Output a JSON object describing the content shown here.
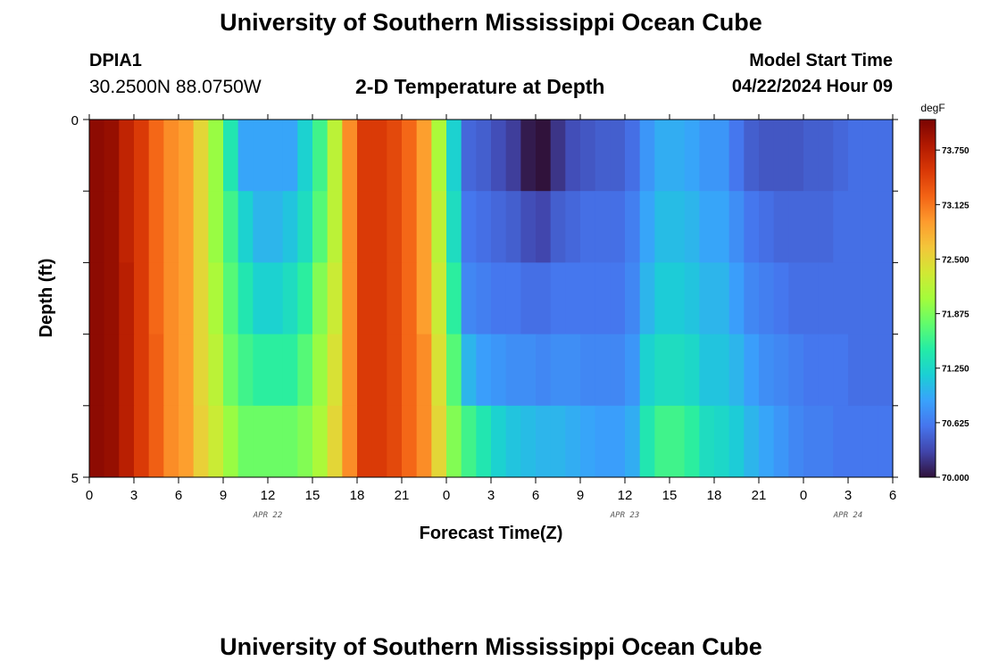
{
  "header": {
    "title": "University of Southern Mississippi Ocean Cube",
    "station_id": "DPIA1",
    "coords": "30.2500N  88.0750W",
    "subtitle": "2-D Temperature at Depth",
    "model_start_label": "Model Start Time",
    "model_start_value": "04/22/2024 Hour 09"
  },
  "footer": {
    "title": "University of Southern Mississippi Ocean Cube"
  },
  "chart_data": {
    "type": "heatmap",
    "title": "2-D Temperature at Depth",
    "xlabel": "Forecast Time(Z)",
    "ylabel": "Depth (ft)",
    "x_tick_labels": [
      "0",
      "3",
      "6",
      "9",
      "12",
      "15",
      "18",
      "21",
      "0",
      "3",
      "6",
      "9",
      "12",
      "15",
      "18",
      "21",
      "0",
      "3",
      "6"
    ],
    "x_date_labels": [
      "APR 22",
      "APR 23",
      "APR 24"
    ],
    "y_tick_labels": [
      "0",
      "5"
    ],
    "x_range_hours": [
      0,
      54
    ],
    "y_range_ft": [
      0,
      5
    ],
    "depth_levels_ft": [
      0,
      1,
      2,
      3,
      4,
      5
    ],
    "colorbar": {
      "unit": "degF",
      "range": [
        70.0,
        74.1
      ],
      "ticks": [
        "70.000",
        "70.625",
        "71.250",
        "71.875",
        "72.500",
        "73.125",
        "73.750"
      ],
      "colors": [
        "#30123b",
        "#4145ab",
        "#4675ed",
        "#39a2fc",
        "#1bcfd4",
        "#24eca6",
        "#61fc6c",
        "#a4fc3b",
        "#d1e834",
        "#f3c63a",
        "#fe9b2d",
        "#f36315",
        "#d93806",
        "#b11901",
        "#7a0402"
      ]
    },
    "series_hours": [
      0,
      1,
      2,
      3,
      4,
      5,
      6,
      7,
      8,
      9,
      10,
      11,
      12,
      13,
      14,
      15,
      16,
      17,
      18,
      19,
      20,
      21,
      22,
      23,
      24,
      25,
      26,
      27,
      28,
      29,
      30,
      31,
      32,
      33,
      34,
      35,
      36,
      37,
      38,
      39,
      40,
      41,
      42,
      43,
      44,
      45,
      46,
      47,
      48,
      49,
      50,
      51,
      52,
      53,
      54
    ],
    "temperature_degF": [
      [
        74.0,
        73.95,
        73.7,
        73.5,
        73.2,
        73.0,
        72.9,
        72.5,
        72.0,
        71.4,
        70.9,
        70.9,
        70.9,
        70.9,
        71.2,
        71.6,
        72.2,
        73.0,
        73.5,
        73.5,
        73.4,
        73.2,
        72.9,
        72.1,
        71.2,
        70.5,
        70.45,
        70.35,
        70.25,
        70.05,
        70.0,
        70.2,
        70.35,
        70.4,
        70.45,
        70.45,
        70.55,
        70.8,
        70.95,
        70.95,
        70.9,
        70.8,
        70.8,
        70.6,
        70.45,
        70.4,
        70.4,
        70.4,
        70.45,
        70.45,
        70.5,
        70.55,
        70.55,
        70.55,
        70.55
      ],
      [
        74.0,
        73.95,
        73.7,
        73.5,
        73.2,
        73.0,
        72.9,
        72.5,
        72.0,
        71.6,
        71.2,
        71.0,
        71.0,
        71.1,
        71.3,
        71.7,
        72.2,
        73.0,
        73.5,
        73.5,
        73.4,
        73.2,
        72.9,
        72.2,
        71.3,
        70.6,
        70.55,
        70.5,
        70.45,
        70.35,
        70.3,
        70.45,
        70.5,
        70.55,
        70.55,
        70.55,
        70.65,
        70.9,
        71.05,
        71.05,
        71.0,
        70.9,
        70.9,
        70.75,
        70.6,
        70.55,
        70.5,
        70.5,
        70.5,
        70.5,
        70.55,
        70.55,
        70.55,
        70.55,
        70.55
      ],
      [
        74.0,
        73.95,
        73.75,
        73.5,
        73.2,
        73.0,
        72.9,
        72.5,
        72.1,
        71.7,
        71.4,
        71.2,
        71.2,
        71.3,
        71.5,
        71.9,
        72.3,
        73.0,
        73.5,
        73.5,
        73.4,
        73.2,
        72.9,
        72.3,
        71.5,
        70.7,
        70.65,
        70.6,
        70.6,
        70.55,
        70.55,
        70.6,
        70.6,
        70.6,
        70.6,
        70.6,
        70.7,
        71.0,
        71.15,
        71.15,
        71.1,
        71.0,
        71.0,
        70.85,
        70.7,
        70.65,
        70.6,
        70.55,
        70.55,
        70.55,
        70.55,
        70.55,
        70.55,
        70.55,
        70.55
      ],
      [
        74.0,
        73.95,
        73.75,
        73.5,
        73.25,
        73.0,
        72.9,
        72.5,
        72.2,
        71.8,
        71.6,
        71.5,
        71.5,
        71.5,
        71.7,
        72.0,
        72.4,
        73.0,
        73.5,
        73.5,
        73.4,
        73.2,
        73.0,
        72.4,
        71.7,
        71.0,
        70.85,
        70.8,
        70.75,
        70.75,
        70.7,
        70.75,
        70.75,
        70.7,
        70.7,
        70.7,
        70.8,
        71.2,
        71.3,
        71.3,
        71.25,
        71.1,
        71.1,
        71.0,
        70.85,
        70.75,
        70.7,
        70.65,
        70.6,
        70.6,
        70.6,
        70.55,
        70.55,
        70.55,
        70.55
      ],
      [
        74.0,
        73.95,
        73.75,
        73.5,
        73.25,
        73.0,
        72.9,
        72.55,
        72.3,
        72.0,
        71.8,
        71.8,
        71.8,
        71.8,
        71.9,
        72.1,
        72.5,
        73.0,
        73.5,
        73.5,
        73.4,
        73.2,
        73.0,
        72.5,
        71.9,
        71.6,
        71.4,
        71.2,
        71.1,
        71.05,
        71.0,
        71.0,
        70.95,
        70.9,
        70.85,
        70.85,
        70.95,
        71.4,
        71.6,
        71.6,
        71.5,
        71.3,
        71.25,
        71.15,
        71.0,
        70.9,
        70.8,
        70.7,
        70.65,
        70.65,
        70.6,
        70.6,
        70.6,
        70.6,
        70.55
      ]
    ]
  }
}
